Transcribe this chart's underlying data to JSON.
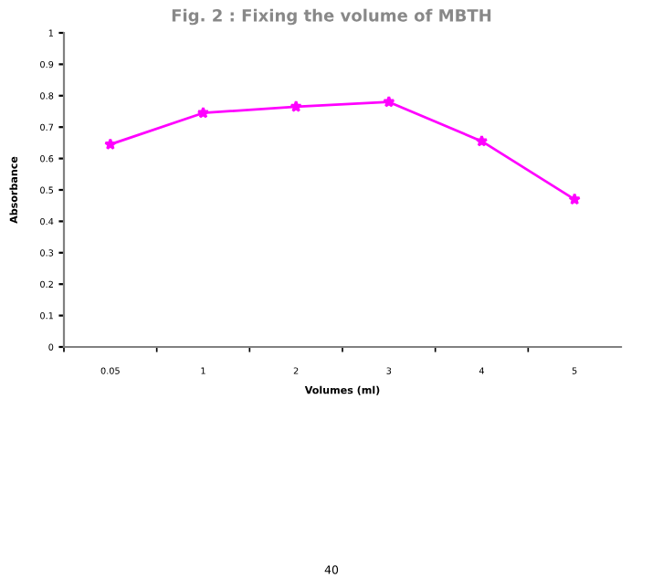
{
  "chart_data": {
    "type": "line",
    "title": "Fig. 2 : Fixing the volume of MBTH",
    "xlabel": "Volumes (ml)",
    "ylabel": "Absorbance",
    "categories": [
      "0.05",
      "1",
      "2",
      "3",
      "4",
      "5"
    ],
    "series": [
      {
        "color": "#ff00ff",
        "values": [
          0.645,
          0.745,
          0.765,
          0.78,
          0.655,
          0.47
        ]
      }
    ],
    "ylim": [
      0,
      1
    ],
    "yticks": [
      0,
      0.1,
      0.2,
      0.3,
      0.4,
      0.5,
      0.6,
      0.7,
      0.8,
      0.9,
      1
    ],
    "marker": "star",
    "line_style": "solid",
    "grid": false,
    "legend": false,
    "annotations": [
      "40"
    ]
  }
}
